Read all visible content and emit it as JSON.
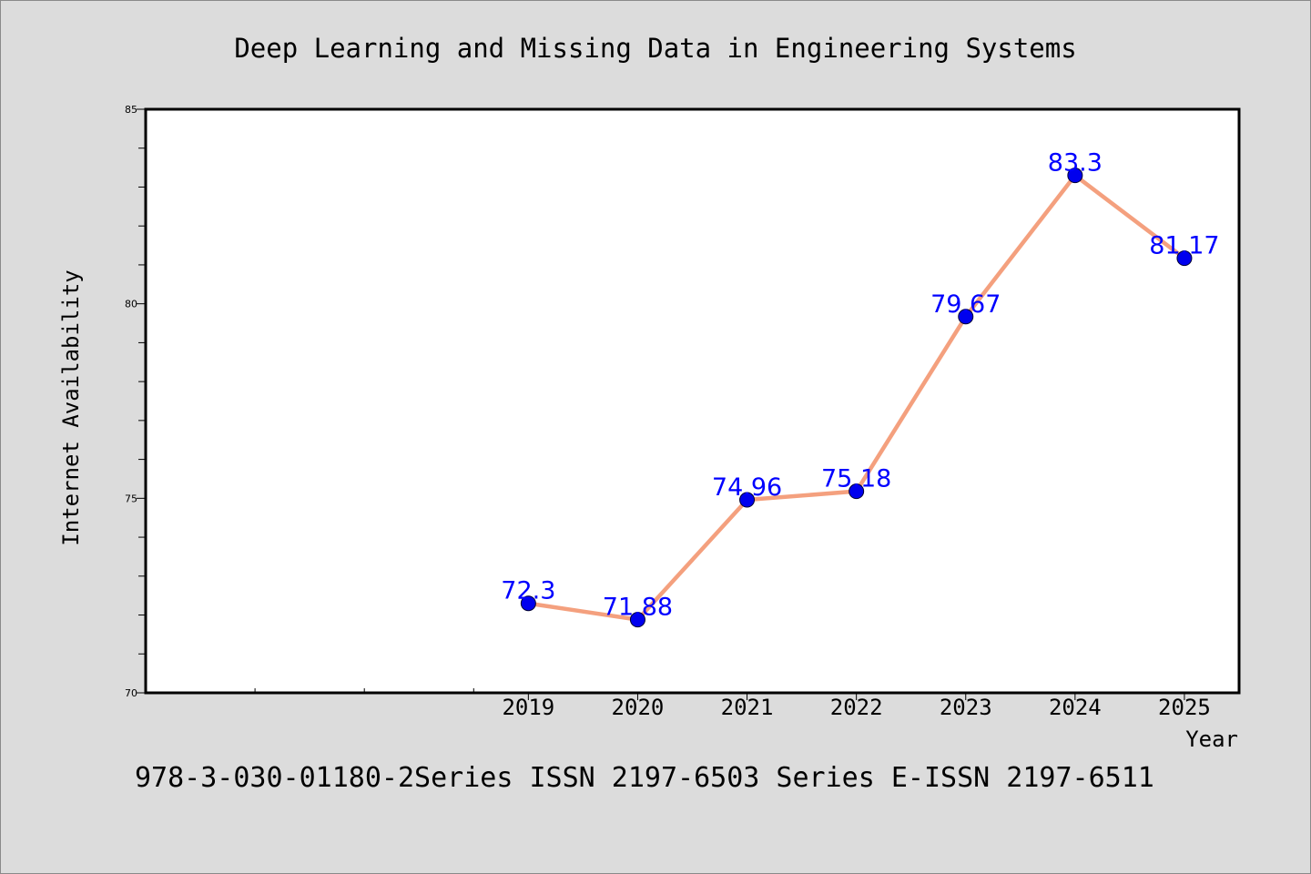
{
  "chart_data": {
    "type": "line",
    "title": "Deep Learning and Missing Data in Engineering Systems",
    "xlabel": "Year",
    "ylabel": "Internet Availability",
    "footer": "978-3-030-01180-2Series ISSN 2197-6503 Series E-ISSN 2197-6511",
    "x_tick_labels": [
      "2019",
      "2020",
      "2021",
      "2022",
      "2023",
      "2024",
      "2025"
    ],
    "y_tick_labels": [
      "70",
      "75",
      "80",
      "85"
    ],
    "y_ticks": [
      70,
      75,
      80,
      85
    ],
    "ylim": [
      70,
      85
    ],
    "xlim": [
      2015.5,
      2025.5
    ],
    "grid": false,
    "series": [
      {
        "x": [
          2019,
          2020,
          2021,
          2022,
          2023,
          2024,
          2025
        ],
        "values": [
          72.3,
          71.88,
          74.96,
          75.18,
          79.67,
          83.3,
          81.17
        ],
        "labels": [
          "72.3",
          "71.88",
          "74.96",
          "75.18",
          "79.67",
          "83.3",
          "81.17"
        ]
      }
    ],
    "colors": {
      "line": "#f4a07e",
      "marker": "#0000ee",
      "label": "#0000ff",
      "axis": "#000000",
      "background": "#dcdcdc",
      "plot_background": "#ffffff"
    }
  }
}
